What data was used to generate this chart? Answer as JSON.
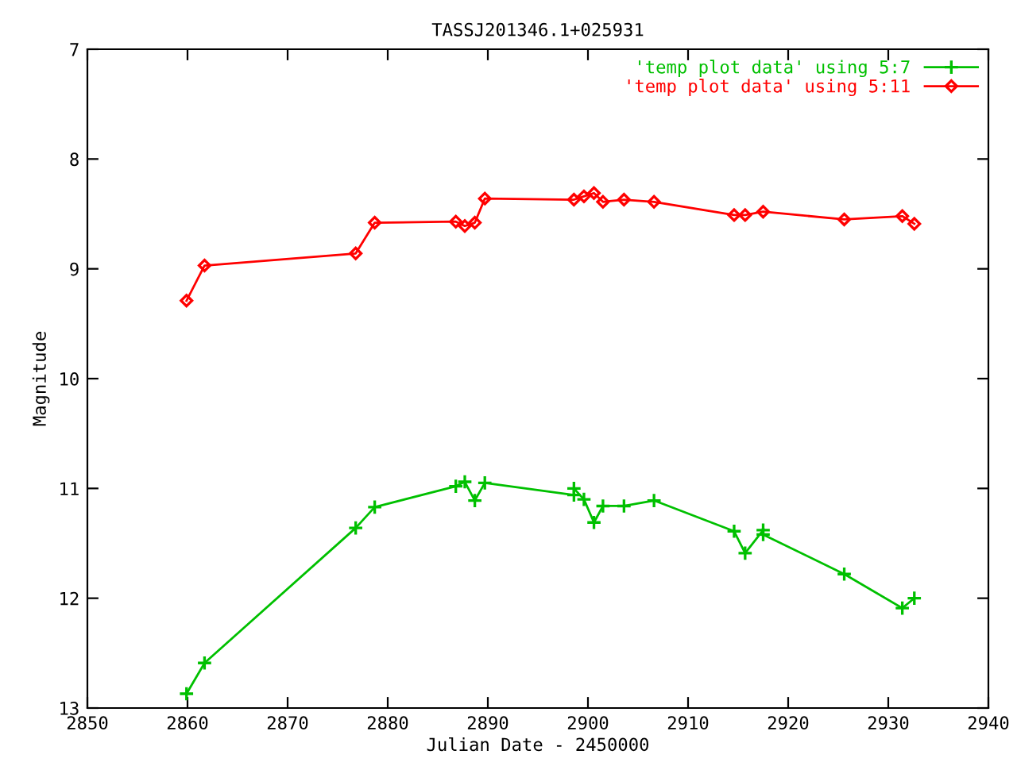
{
  "chart_data": {
    "type": "line",
    "title": "TASSJ201346.1+025931",
    "xlabel": "Julian Date - 2450000",
    "ylabel": "Magnitude",
    "x": [
      2859.9,
      2861.7,
      2876.8,
      2878.7,
      2886.8,
      2887.7,
      2888.7,
      2889.7,
      2898.6,
      2898.6,
      2899.6,
      2900.6,
      2901.5,
      2903.6,
      2906.6,
      2914.6,
      2915.7,
      2917.5,
      2917.5,
      2925.6,
      2931.4,
      2932.6
    ],
    "series": [
      {
        "name": "'temp plot data' using 5:7",
        "color": "#00c000",
        "marker": "cross",
        "values": [
          12.87,
          12.59,
          11.36,
          11.17,
          10.98,
          10.94,
          11.11,
          10.95,
          11.06,
          11.0,
          11.1,
          11.31,
          11.16,
          11.16,
          11.11,
          11.39,
          11.59,
          11.38,
          11.42,
          11.78,
          12.09,
          12.0
        ]
      },
      {
        "name": "'temp plot data' using 5:11",
        "color": "#ff0000",
        "marker": "diamond",
        "x": [
          2859.9,
          2861.7,
          2876.8,
          2878.7,
          2886.8,
          2887.7,
          2888.7,
          2889.7,
          2898.6,
          2899.6,
          2900.6,
          2901.5,
          2903.6,
          2906.6,
          2914.6,
          2915.7,
          2917.5,
          2925.6,
          2931.4,
          2932.6
        ],
        "values": [
          9.29,
          8.97,
          8.86,
          8.58,
          8.57,
          8.61,
          8.58,
          8.36,
          8.37,
          8.34,
          8.31,
          8.39,
          8.37,
          8.39,
          8.51,
          8.51,
          8.48,
          8.55,
          8.52,
          8.59
        ]
      }
    ],
    "xlim": [
      2850,
      2940
    ],
    "xticks": [
      2850,
      2860,
      2870,
      2880,
      2890,
      2900,
      2910,
      2920,
      2930,
      2940
    ],
    "ylim": [
      13,
      7
    ],
    "yticks": [
      7,
      8,
      9,
      10,
      11,
      12,
      13
    ],
    "grid": false,
    "legend": "top right",
    "line_style": "solid"
  }
}
